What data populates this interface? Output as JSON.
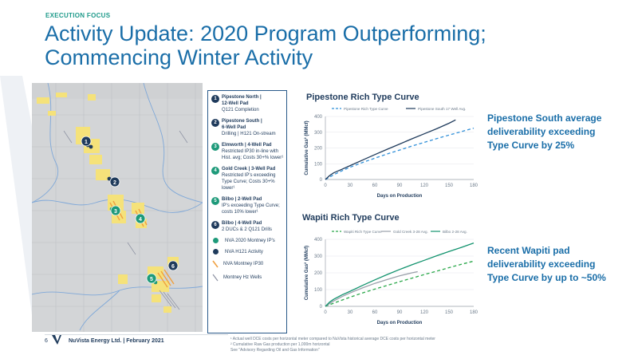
{
  "header": {
    "section_tag": "EXECUTION FOCUS",
    "title_line1": "Activity Update: 2020 Program Outperforming;",
    "title_line2": "Commencing Winter Activity"
  },
  "legend": {
    "pads": [
      {
        "num": "1",
        "title": "Pipestone North |",
        "title2": "12-Well Pad",
        "desc": "Q121 Completion",
        "color": "#1f3b5c"
      },
      {
        "num": "2",
        "title": "Pipestone South |",
        "title2": "6-Well Pad",
        "desc": "Drilling | H121 On-stream",
        "color": "#1f3b5c"
      },
      {
        "num": "3",
        "title": "Elmworth | 4-Well Pad",
        "title2": "",
        "desc": "Restricted IP30 in-line with Hist. avg; Costs 30+% lower¹",
        "color": "#1e9a7a"
      },
      {
        "num": "4",
        "title": "Gold Creek | 3-Well Pad",
        "title2": "",
        "desc": "Restricted IP's exceeding Type Curve; Costs 30+% lower¹",
        "color": "#1e9a7a"
      },
      {
        "num": "5",
        "title": "Bilbo | 2-Well Pad",
        "title2": "",
        "desc": "IP's exceeding Type Curve; costs 10% lower¹",
        "color": "#1e9a7a"
      },
      {
        "num": "6",
        "title": "Bilbo | 4-Well Pad",
        "title2": "",
        "desc": "2 DUCs & 2 Q121 Drills",
        "color": "#1f3b5c"
      }
    ],
    "symbols": {
      "montney_ips": "NVA 2020 Montney IP's",
      "h121": "NVA H121 Activity",
      "ip30": "NVA Montney IP30",
      "hz_wells": "Montney Hz Wells"
    },
    "colors": {
      "teal": "#1e9a7a",
      "navy": "#1f3b5c",
      "orange": "#f0a040",
      "gray": "#8a8fa0"
    }
  },
  "callouts": {
    "pipestone": [
      "Pipestone South average",
      "deliverability exceeding",
      "Type Curve by 25%"
    ],
    "wapiti": [
      "Recent Wapiti pad",
      "deliverability exceeding",
      "Type Curve by up to ~50%"
    ]
  },
  "footer": {
    "page": "6",
    "company": "NuVista Energy Ltd. | February 2021",
    "notes": [
      "¹ Actual well DCE costs per horizontal meter compared to NuVista historical average DCE costs per horizontal meter",
      "² Cumulative Raw Gas production per 1,000m horizontal",
      "See \"Advisory Regarding Oil and Gas Information\""
    ]
  },
  "chart_data": [
    {
      "type": "line",
      "title": "Pipestone Rich Type Curve",
      "xlabel": "Days on Production",
      "ylabel": "Cumulative Gas² (MMcf)",
      "xlim": [
        0,
        180
      ],
      "ylim": [
        0,
        400
      ],
      "xticks": [
        0,
        30,
        60,
        90,
        120,
        150,
        180
      ],
      "yticks": [
        0,
        100,
        200,
        300,
        400
      ],
      "legend_position": "top",
      "series": [
        {
          "name": "Pipestone Rich Type Curve",
          "style": "dashed",
          "color": "#2f8fd8",
          "x": [
            0,
            10,
            20,
            30,
            45,
            60,
            75,
            90,
            105,
            120,
            135,
            150,
            165,
            180
          ],
          "y": [
            0,
            30,
            55,
            78,
            108,
            135,
            162,
            187,
            212,
            236,
            259,
            282,
            304,
            326
          ]
        },
        {
          "name": "Pipestone South 17 Well Avg.",
          "style": "solid",
          "color": "#1f3b5c",
          "x": [
            0,
            5,
            10,
            20,
            30,
            45,
            60,
            75,
            90,
            105,
            120,
            135,
            150,
            158
          ],
          "y": [
            0,
            25,
            42,
            65,
            88,
            123,
            158,
            192,
            225,
            258,
            290,
            322,
            357,
            378
          ]
        }
      ]
    },
    {
      "type": "line",
      "title": "Wapiti Rich Type Curve",
      "xlabel": "Days on Production",
      "ylabel": "Cumulative Gas² (MMcf)",
      "xlim": [
        0,
        180
      ],
      "ylim": [
        0,
        400
      ],
      "xticks": [
        0,
        30,
        60,
        90,
        120,
        150,
        180
      ],
      "yticks": [
        0,
        100,
        200,
        300,
        400
      ],
      "legend_position": "top",
      "series": [
        {
          "name": "Wapiti Rich Type Curve",
          "style": "dashed",
          "color": "#2aa84a",
          "x": [
            0,
            15,
            30,
            45,
            60,
            75,
            90,
            105,
            120,
            135,
            150,
            165,
            180
          ],
          "y": [
            0,
            28,
            55,
            80,
            103,
            125,
            147,
            168,
            190,
            210,
            231,
            251,
            270
          ]
        },
        {
          "name": "Gold Creek 3-28 Avg.",
          "style": "solid",
          "color": "#9aa0aa",
          "x": [
            0,
            10,
            20,
            30,
            45,
            60,
            75,
            90,
            105,
            112
          ],
          "y": [
            0,
            32,
            58,
            80,
            110,
            137,
            160,
            182,
            200,
            207
          ]
        },
        {
          "name": "Bilbo 2-28 Avg.",
          "style": "solid",
          "color": "#12936e",
          "x": [
            0,
            5,
            10,
            20,
            30,
            45,
            60,
            75,
            90,
            105,
            120,
            135,
            150,
            165,
            180
          ],
          "y": [
            0,
            25,
            42,
            68,
            90,
            125,
            158,
            190,
            220,
            248,
            275,
            302,
            327,
            352,
            378
          ]
        }
      ]
    }
  ]
}
